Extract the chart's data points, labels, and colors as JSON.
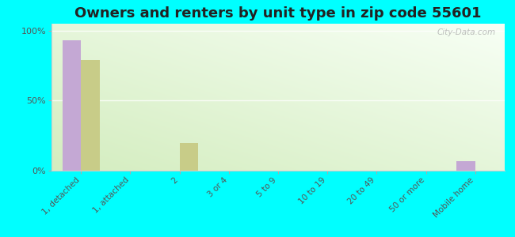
{
  "title": "Owners and renters by unit type in zip code 55601",
  "categories": [
    "1, detached",
    "1, attached",
    "2",
    "3 or 4",
    "5 to 9",
    "10 to 19",
    "20 to 49",
    "50 or more",
    "Mobile home"
  ],
  "owner_values": [
    93,
    0,
    0,
    0,
    0,
    0,
    0,
    0,
    7
  ],
  "renter_values": [
    79,
    0,
    20,
    0,
    0,
    0,
    0,
    0,
    0
  ],
  "owner_color": "#c4a8d4",
  "renter_color": "#c8cc88",
  "background_color": "#00ffff",
  "title_fontsize": 13,
  "ylabel_ticks": [
    "0%",
    "50%",
    "100%"
  ],
  "ytick_vals": [
    0,
    50,
    100
  ],
  "ylim": [
    0,
    105
  ],
  "bar_width": 0.38,
  "watermark": "City-Data.com",
  "grad_color_left": "#d8ecc8",
  "grad_color_right": "#f8fef0"
}
